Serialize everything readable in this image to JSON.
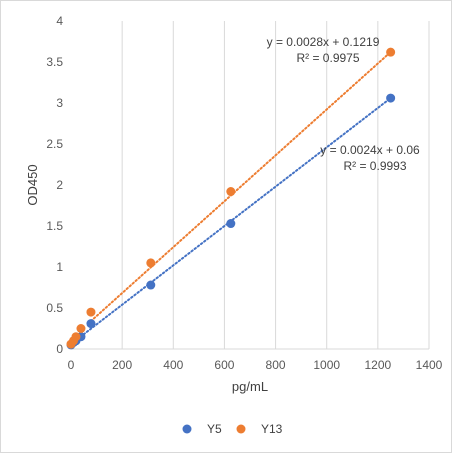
{
  "chart_data": {
    "type": "scatter",
    "title": "",
    "xlabel": "pg/mL",
    "ylabel": "OD450",
    "xlim": [
      0,
      1400
    ],
    "ylim": [
      0,
      4
    ],
    "xticks": [
      0,
      200,
      400,
      600,
      800,
      1000,
      1200,
      1400
    ],
    "yticks": [
      0,
      0.5,
      1,
      1.5,
      2,
      2.5,
      3,
      3.5,
      4
    ],
    "xtick_labels": [
      "0",
      "200",
      "400",
      "600",
      "800",
      "1000",
      "1200",
      "1400"
    ],
    "ytick_labels": [
      "0",
      "0.5",
      "1",
      "1.5",
      "2",
      "2.5",
      "3",
      "3.5",
      "4"
    ],
    "grid": "vertical major gridlines",
    "legend_position": "bottom",
    "series": [
      {
        "name": "Y5",
        "color": "#4472C4",
        "x": [
          0,
          9.8,
          19.5,
          39,
          78,
          312,
          625,
          1250
        ],
        "y": [
          0.05,
          0.08,
          0.1,
          0.15,
          0.31,
          0.78,
          1.53,
          3.06
        ],
        "trendline": {
          "slope": 0.0024,
          "intercept": 0.06,
          "x_range": [
            0,
            1250
          ],
          "equation": "y = 0.0024x + 0.06",
          "r2": "R² = 0.9993"
        }
      },
      {
        "name": "Y13",
        "color": "#ED7D31",
        "x": [
          0,
          9.8,
          19.5,
          39,
          78,
          312,
          625,
          1250
        ],
        "y": [
          0.06,
          0.1,
          0.15,
          0.25,
          0.45,
          1.05,
          1.92,
          3.62
        ],
        "trendline": {
          "slope": 0.0028,
          "intercept": 0.1219,
          "x_range": [
            78,
            1250
          ],
          "equation": "y = 0.0028x + 0.1219",
          "r2": "R² = 0.9975"
        }
      }
    ]
  }
}
